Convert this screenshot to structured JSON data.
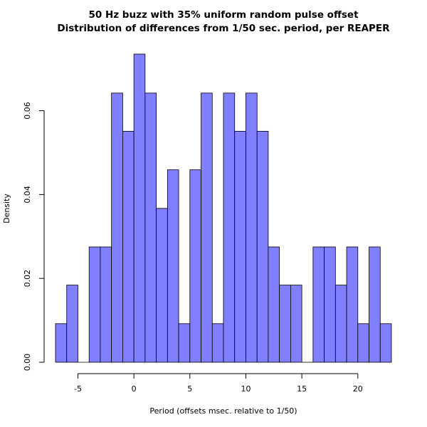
{
  "chart_data": {
    "type": "bar",
    "title": "50 Hz buzz with 35% uniform random pulse offset",
    "subtitle": "Distribution of differences from 1/50 sec. period, per REAPER",
    "xlabel": "Period (offsets msec. relative to 1/50)",
    "ylabel": "Density",
    "xlim": [
      -7,
      23
    ],
    "ylim": [
      0,
      0.0735
    ],
    "x_ticks": [
      -5,
      0,
      5,
      10,
      15,
      20
    ],
    "x_tick_labels": [
      "-5",
      "0",
      "5",
      "10",
      "15",
      "20"
    ],
    "y_ticks": [
      0.0,
      0.02,
      0.04,
      0.06
    ],
    "y_tick_labels": [
      "0.00",
      "0.02",
      "0.04",
      "0.06"
    ],
    "grid": false,
    "bar_fill": "#7f7fff",
    "bar_stroke": "#000000",
    "bin_width": 1,
    "bin_starts": [
      -7,
      -6,
      -5,
      -4,
      -3,
      -2,
      -1,
      0,
      1,
      2,
      3,
      4,
      5,
      6,
      7,
      8,
      9,
      10,
      11,
      12,
      13,
      14,
      15,
      16,
      17,
      18,
      19,
      20,
      21,
      22
    ],
    "values": [
      0.0092,
      0.0184,
      0,
      0.0275,
      0.0275,
      0.0642,
      0.0551,
      0.0735,
      0.0642,
      0.0367,
      0.0459,
      0.0092,
      0.0459,
      0.0642,
      0.0092,
      0.0642,
      0.0551,
      0.0642,
      0.0551,
      0.0275,
      0.0184,
      0.0184,
      0,
      0.0275,
      0.0275,
      0.0184,
      0.0275,
      0.0092,
      0.0275,
      0.0092
    ]
  }
}
